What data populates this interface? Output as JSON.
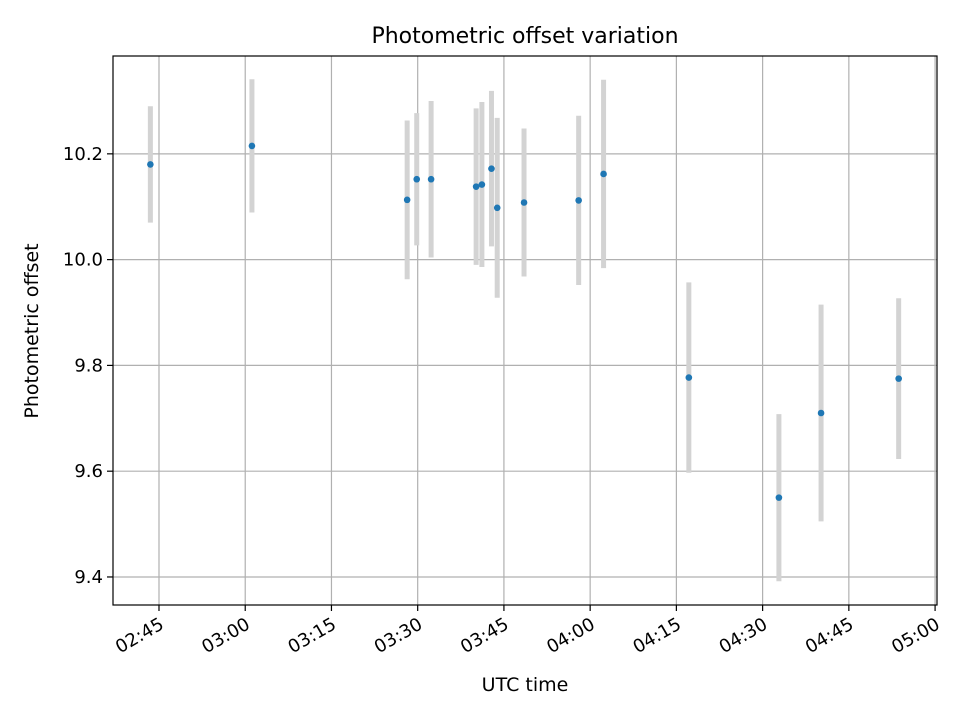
{
  "chart_data": {
    "type": "scatter",
    "title": "Photometric offset variation",
    "xlabel": "UTC time",
    "ylabel": "Photometric offset",
    "x_tick_labels": [
      "02:45",
      "03:00",
      "03:15",
      "03:30",
      "03:45",
      "04:00",
      "04:15",
      "04:30",
      "04:45",
      "05:00"
    ],
    "y_tick_labels": [
      "9.4",
      "9.6",
      "9.8",
      "10.0",
      "10.2"
    ],
    "y_ticks": [
      9.4,
      9.6,
      9.8,
      10.0,
      10.2
    ],
    "xlim": [
      "02:37:00",
      "05:00:20"
    ],
    "ylim": [
      9.347,
      10.385
    ],
    "grid": true,
    "colors": {
      "point": "#1f77b4",
      "errorbar": "#d3d3d3",
      "grid": "#b0b0b0"
    },
    "series": [
      {
        "points": [
          {
            "x": "02:43:30",
            "y": 10.18,
            "err": 0.11
          },
          {
            "x": "03:01:10",
            "y": 10.215,
            "err": 0.126
          },
          {
            "x": "03:28:10",
            "y": 10.113,
            "err": 0.15
          },
          {
            "x": "03:29:50",
            "y": 10.152,
            "err": 0.125
          },
          {
            "x": "03:32:20",
            "y": 10.152,
            "err": 0.148
          },
          {
            "x": "03:40:10",
            "y": 10.138,
            "err": 0.148
          },
          {
            "x": "03:41:10",
            "y": 10.142,
            "err": 0.156
          },
          {
            "x": "03:42:50",
            "y": 10.172,
            "err": 0.147
          },
          {
            "x": "03:43:50",
            "y": 10.098,
            "err": 0.17
          },
          {
            "x": "03:48:30",
            "y": 10.108,
            "err": 0.14
          },
          {
            "x": "03:58:00",
            "y": 10.112,
            "err": 0.16
          },
          {
            "x": "04:02:20",
            "y": 10.162,
            "err": 0.178
          },
          {
            "x": "04:17:10",
            "y": 9.777,
            "err": 0.18
          },
          {
            "x": "04:32:50",
            "y": 9.55,
            "err": 0.158
          },
          {
            "x": "04:40:10",
            "y": 9.71,
            "err": 0.205
          },
          {
            "x": "04:53:40",
            "y": 9.775,
            "err": 0.152
          }
        ]
      }
    ]
  }
}
